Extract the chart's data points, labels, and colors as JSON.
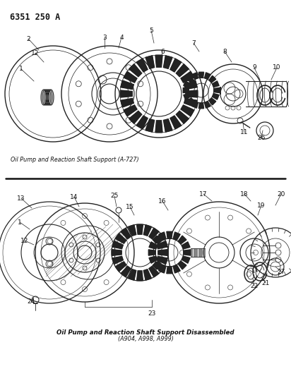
{
  "title": "6351 250 A",
  "caption_top": "Oil Pump and Reaction Shaft Support (A-727)",
  "caption_bottom_line1": "Oil Pump and Reaction Shaft Support Disassembled",
  "caption_bottom_line2": "(A904, A998, A999)",
  "bg_color": "#ffffff",
  "text_color": "#111111",
  "dc": "#222222",
  "lw": 0.7
}
